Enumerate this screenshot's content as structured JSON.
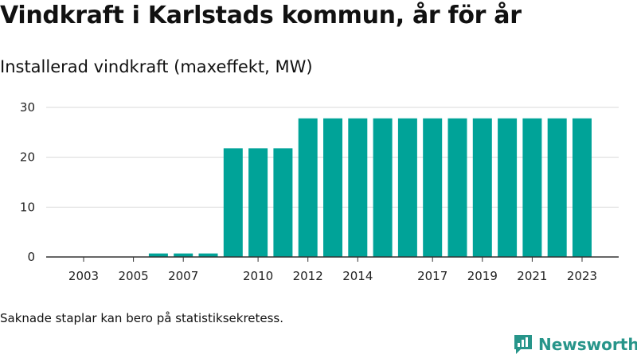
{
  "title": "Vindkraft i Karlstads kommun, år för år",
  "subtitle": "Installerad vindkraft (maxeffekt, MW)",
  "note": "Saknade staplar kan bero på statistiksekretess.",
  "brand": {
    "name": "Newsworthy",
    "icon": "newsworthy-logo-icon",
    "color": "#27958a"
  },
  "chart_data": {
    "type": "bar",
    "title": "Vindkraft i Karlstads kommun, år för år",
    "subtitle": "Installerad vindkraft (maxeffekt, MW)",
    "xlabel": "",
    "ylabel": "",
    "bar_color": "#00a398",
    "ylim": [
      0,
      30
    ],
    "yticks": [
      0,
      10,
      20,
      30
    ],
    "grid": true,
    "categories": [
      2003,
      2004,
      2005,
      2006,
      2007,
      2008,
      2009,
      2010,
      2011,
      2012,
      2013,
      2014,
      2015,
      2016,
      2017,
      2018,
      2019,
      2020,
      2021,
      2022,
      2023
    ],
    "values": [
      0,
      0,
      0,
      0.7,
      0.7,
      0.7,
      21.8,
      21.8,
      21.8,
      27.8,
      27.8,
      27.8,
      27.8,
      27.8,
      27.8,
      27.8,
      27.8,
      27.8,
      27.8,
      27.8,
      27.8
    ],
    "xtick_labels": [
      "2003",
      "2005",
      "2007",
      "2010",
      "2012",
      "2014",
      "2017",
      "2019",
      "2021",
      "2023"
    ]
  }
}
